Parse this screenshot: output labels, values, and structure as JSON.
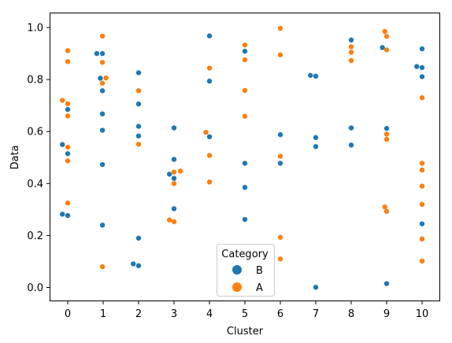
{
  "chart_data": {
    "type": "scatter",
    "subtype": "strip",
    "xlabel": "Cluster",
    "ylabel": "Data",
    "categories": [
      "0",
      "1",
      "2",
      "3",
      "4",
      "5",
      "6",
      "7",
      "8",
      "9",
      "10"
    ],
    "ylim": [
      -0.05,
      1.05
    ],
    "yticks": [
      0.0,
      0.2,
      0.4,
      0.6,
      0.8,
      1.0
    ],
    "ytick_labels": [
      "0.0",
      "0.2",
      "0.4",
      "0.6",
      "0.8",
      "1.0"
    ],
    "grid": false,
    "legend": {
      "title": "Category",
      "placement": "bottom-center",
      "entries": [
        "B",
        "A"
      ]
    },
    "series": [
      {
        "name": "B",
        "color": "#1f77b4",
        "points": [
          {
            "x": 0,
            "j": -0.15,
            "y": 0.55
          },
          {
            "x": 0,
            "j": -0.15,
            "y": 0.282
          },
          {
            "x": 0,
            "j": 0.0,
            "y": 0.685
          },
          {
            "x": 0,
            "j": 0.0,
            "y": 0.515
          },
          {
            "x": 0,
            "j": 0.0,
            "y": 0.277
          },
          {
            "x": 1,
            "j": -0.18,
            "y": 0.9
          },
          {
            "x": 1,
            "j": -0.08,
            "y": 0.805
          },
          {
            "x": 1,
            "j": -0.02,
            "y": 0.9
          },
          {
            "x": 1,
            "j": -0.02,
            "y": 0.757
          },
          {
            "x": 1,
            "j": -0.02,
            "y": 0.668
          },
          {
            "x": 1,
            "j": -0.02,
            "y": 0.605
          },
          {
            "x": 1,
            "j": -0.02,
            "y": 0.473
          },
          {
            "x": 1,
            "j": -0.02,
            "y": 0.24
          },
          {
            "x": 2,
            "j": 0.0,
            "y": 0.826
          },
          {
            "x": 2,
            "j": 0.0,
            "y": 0.706
          },
          {
            "x": 2,
            "j": 0.0,
            "y": 0.62
          },
          {
            "x": 2,
            "j": 0.0,
            "y": 0.583
          },
          {
            "x": 2,
            "j": 0.0,
            "y": 0.19
          },
          {
            "x": 2,
            "j": -0.15,
            "y": 0.091
          },
          {
            "x": 2,
            "j": 0.0,
            "y": 0.084
          },
          {
            "x": 3,
            "j": 0.0,
            "y": 0.614
          },
          {
            "x": 3,
            "j": 0.0,
            "y": 0.493
          },
          {
            "x": 3,
            "j": -0.13,
            "y": 0.436
          },
          {
            "x": 3,
            "j": 0.0,
            "y": 0.42
          },
          {
            "x": 3,
            "j": 0.0,
            "y": 0.303
          },
          {
            "x": 4,
            "j": 0.0,
            "y": 0.968
          },
          {
            "x": 4,
            "j": 0.0,
            "y": 0.794
          },
          {
            "x": 4,
            "j": 0.0,
            "y": 0.58
          },
          {
            "x": 5,
            "j": 0.0,
            "y": 0.909
          },
          {
            "x": 5,
            "j": 0.0,
            "y": 0.478
          },
          {
            "x": 5,
            "j": 0.0,
            "y": 0.385
          },
          {
            "x": 5,
            "j": 0.0,
            "y": 0.262
          },
          {
            "x": 6,
            "j": 0.0,
            "y": 0.588
          },
          {
            "x": 6,
            "j": 0.0,
            "y": 0.478
          },
          {
            "x": 7,
            "j": -0.15,
            "y": 0.816
          },
          {
            "x": 7,
            "j": 0.0,
            "y": 0.813
          },
          {
            "x": 7,
            "j": 0.0,
            "y": 0.577
          },
          {
            "x": 7,
            "j": 0.0,
            "y": 0.542
          },
          {
            "x": 7,
            "j": 0.0,
            "y": 0.001
          },
          {
            "x": 8,
            "j": 0.0,
            "y": 0.952
          },
          {
            "x": 8,
            "j": 0.0,
            "y": 0.614
          },
          {
            "x": 8,
            "j": 0.0,
            "y": 0.548
          },
          {
            "x": 9,
            "j": -0.12,
            "y": 0.923
          },
          {
            "x": 9,
            "j": 0.0,
            "y": 0.612
          },
          {
            "x": 9,
            "j": 0.0,
            "y": 0.015
          },
          {
            "x": 10,
            "j": -0.15,
            "y": 0.85
          },
          {
            "x": 10,
            "j": 0.0,
            "y": 0.918
          },
          {
            "x": 10,
            "j": 0.0,
            "y": 0.846
          },
          {
            "x": 10,
            "j": 0.0,
            "y": 0.811
          },
          {
            "x": 10,
            "j": 0.0,
            "y": 0.245
          }
        ]
      },
      {
        "name": "A",
        "color": "#ff7f0e",
        "points": [
          {
            "x": 0,
            "j": 0.0,
            "y": 0.911
          },
          {
            "x": 0,
            "j": 0.0,
            "y": 0.869
          },
          {
            "x": 0,
            "j": -0.15,
            "y": 0.72
          },
          {
            "x": 0,
            "j": 0.0,
            "y": 0.707
          },
          {
            "x": 0,
            "j": 0.0,
            "y": 0.66
          },
          {
            "x": 0,
            "j": 0.0,
            "y": 0.54
          },
          {
            "x": 0,
            "j": 0.0,
            "y": 0.487
          },
          {
            "x": 0,
            "j": 0.0,
            "y": 0.325
          },
          {
            "x": 1,
            "j": -0.02,
            "y": 0.967
          },
          {
            "x": 1,
            "j": -0.02,
            "y": 0.866
          },
          {
            "x": 1,
            "j": 0.08,
            "y": 0.806
          },
          {
            "x": 1,
            "j": -0.02,
            "y": 0.786
          },
          {
            "x": 1,
            "j": -0.02,
            "y": 0.08
          },
          {
            "x": 2,
            "j": 0.0,
            "y": 0.757
          },
          {
            "x": 2,
            "j": 0.0,
            "y": 0.551
          },
          {
            "x": 3,
            "j": 0.0,
            "y": 0.444
          },
          {
            "x": 3,
            "j": 0.18,
            "y": 0.448
          },
          {
            "x": 3,
            "j": 0.0,
            "y": 0.4
          },
          {
            "x": 3,
            "j": -0.13,
            "y": 0.26
          },
          {
            "x": 3,
            "j": 0.0,
            "y": 0.253
          },
          {
            "x": 4,
            "j": 0.0,
            "y": 0.844
          },
          {
            "x": 4,
            "j": -0.1,
            "y": 0.597
          },
          {
            "x": 4,
            "j": 0.0,
            "y": 0.508
          },
          {
            "x": 4,
            "j": 0.0,
            "y": 0.406
          },
          {
            "x": 5,
            "j": 0.0,
            "y": 0.933
          },
          {
            "x": 5,
            "j": 0.0,
            "y": 0.876
          },
          {
            "x": 5,
            "j": 0.0,
            "y": 0.758
          },
          {
            "x": 5,
            "j": 0.0,
            "y": 0.659
          },
          {
            "x": 6,
            "j": 0.0,
            "y": 0.997
          },
          {
            "x": 6,
            "j": 0.0,
            "y": 0.895
          },
          {
            "x": 6,
            "j": 0.0,
            "y": 0.505
          },
          {
            "x": 6,
            "j": 0.0,
            "y": 0.193
          },
          {
            "x": 6,
            "j": 0.0,
            "y": 0.11
          },
          {
            "x": 8,
            "j": 0.0,
            "y": 0.926
          },
          {
            "x": 8,
            "j": 0.0,
            "y": 0.905
          },
          {
            "x": 8,
            "j": 0.0,
            "y": 0.873
          },
          {
            "x": 9,
            "j": -0.05,
            "y": 0.985
          },
          {
            "x": 9,
            "j": 0.0,
            "y": 0.966
          },
          {
            "x": 9,
            "j": 0.0,
            "y": 0.914
          },
          {
            "x": 9,
            "j": 0.0,
            "y": 0.59
          },
          {
            "x": 9,
            "j": 0.0,
            "y": 0.57
          },
          {
            "x": 9,
            "j": -0.05,
            "y": 0.31
          },
          {
            "x": 9,
            "j": 0.0,
            "y": 0.293
          },
          {
            "x": 10,
            "j": 0.0,
            "y": 0.73
          },
          {
            "x": 10,
            "j": 0.0,
            "y": 0.478
          },
          {
            "x": 10,
            "j": 0.0,
            "y": 0.452
          },
          {
            "x": 10,
            "j": 0.0,
            "y": 0.39
          },
          {
            "x": 10,
            "j": 0.0,
            "y": 0.32
          },
          {
            "x": 10,
            "j": 0.0,
            "y": 0.187
          },
          {
            "x": 10,
            "j": 0.0,
            "y": 0.102
          }
        ]
      }
    ]
  }
}
